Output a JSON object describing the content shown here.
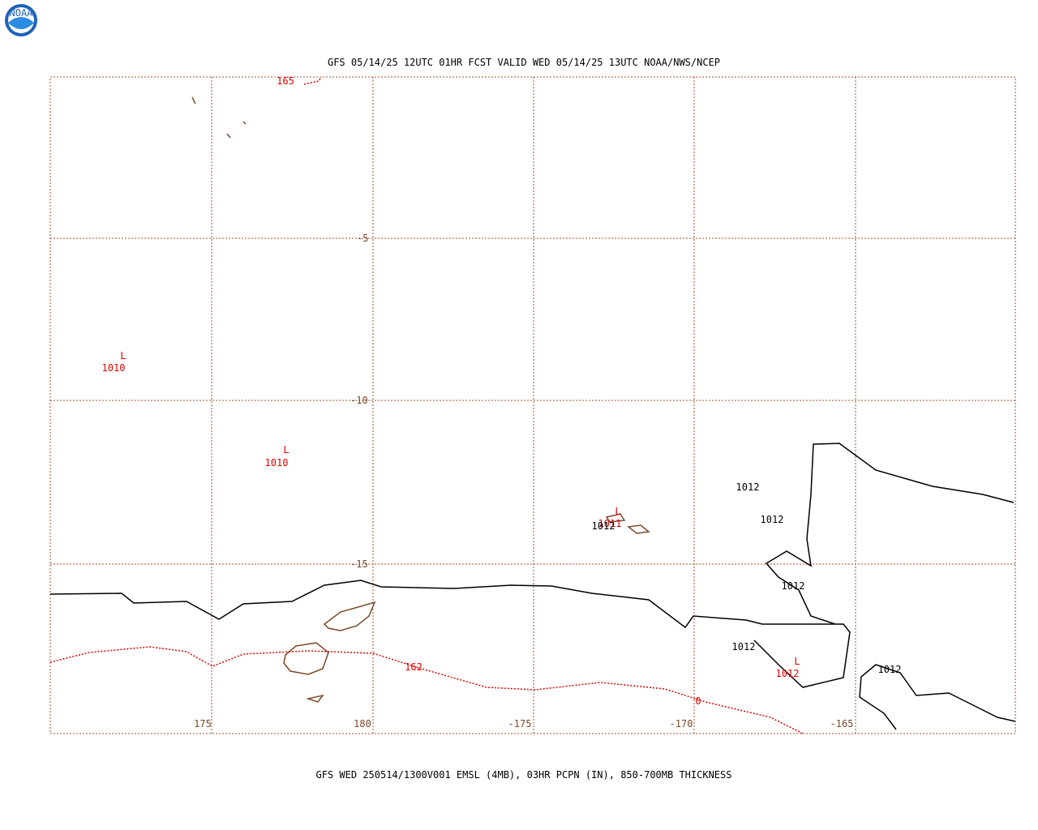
{
  "header": {
    "title": "GFS 05/14/25 12UTC 01HR FCST VALID WED 05/14/25 13UTC NOAA/NWS/NCEP"
  },
  "footer": {
    "caption": "GFS WED 250514/1300V001 EMSL (4MB), 03HR PCPN (IN), 850-700MB THICKNESS"
  },
  "latitude_labels": [
    "-5",
    "-10",
    "-15"
  ],
  "longitude_labels": [
    "175",
    "180",
    "-175",
    "-170",
    "-165"
  ],
  "lows": [
    {
      "symbol": "L",
      "label": "1010"
    },
    {
      "symbol": "L",
      "label": "1010"
    },
    {
      "symbol": "L",
      "label": "1011"
    },
    {
      "symbol": "L",
      "label": "1012"
    }
  ],
  "isobar_labels": [
    "1012",
    "1012",
    "1012",
    "1012",
    "1012",
    "1012"
  ],
  "thickness_labels": [
    "165",
    "162",
    "0"
  ]
}
